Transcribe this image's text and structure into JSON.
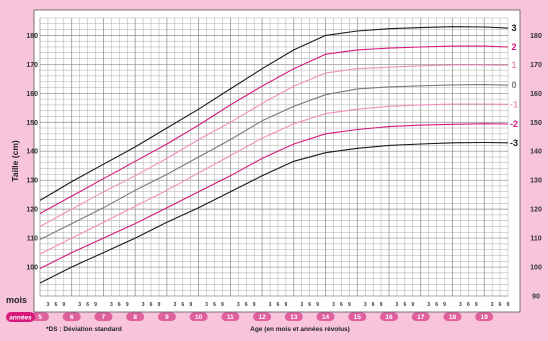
{
  "chart_data": {
    "type": "line",
    "ylabel": "Taille (cm)",
    "xlabel": "Age (en mois et années révolus)",
    "footnote": "*DS : Déviation standard",
    "months_label": "mois",
    "years_label": "années",
    "month_ticks": [
      "3",
      "6",
      "9"
    ],
    "ylim": [
      90,
      186
    ],
    "xlim": [
      5,
      19.75
    ],
    "y_ticks": [
      100,
      110,
      120,
      130,
      140,
      150,
      160,
      170,
      180
    ],
    "y_ticks_right": [
      90,
      100,
      110,
      120,
      130,
      140,
      150,
      160,
      170,
      180
    ],
    "years": [
      "5",
      "6",
      "7",
      "8",
      "9",
      "10",
      "11",
      "12",
      "13",
      "14",
      "15",
      "16",
      "17",
      "18",
      "19"
    ],
    "grid": true,
    "x": [
      5,
      6,
      7,
      8,
      9,
      10,
      11,
      12,
      13,
      14,
      15,
      16,
      17,
      18,
      19,
      19.75
    ],
    "series": [
      {
        "name": "3",
        "color": "#1a1a1a",
        "values": [
          123,
          129.5,
          135.5,
          141.5,
          148,
          154.5,
          161.5,
          168.5,
          175,
          180,
          181.5,
          182.3,
          182.7,
          183,
          182.9,
          182.5
        ]
      },
      {
        "name": "2",
        "color": "#d6197a",
        "values": [
          118.5,
          124.5,
          130.5,
          136.5,
          142.5,
          149,
          156,
          162.5,
          168.5,
          173.5,
          175,
          175.6,
          176,
          176.3,
          176.3,
          176
        ]
      },
      {
        "name": "1",
        "color": "#f08fbf",
        "values": [
          114,
          120,
          126,
          131.5,
          137.5,
          144,
          150,
          156.5,
          162.5,
          167,
          168.5,
          169,
          169.5,
          169.8,
          169.8,
          169.7
        ]
      },
      {
        "name": "0",
        "color": "#7a7a7a",
        "values": [
          109.5,
          115,
          120.5,
          126.5,
          132,
          138,
          144,
          150.5,
          155.5,
          159.5,
          161.5,
          162.2,
          162.6,
          162.9,
          163,
          162.8
        ]
      },
      {
        "name": "-1",
        "color": "#f08fbf",
        "values": [
          104.5,
          110,
          115.5,
          121,
          126.5,
          132.5,
          138.5,
          144.5,
          149.5,
          153,
          154.5,
          155.5,
          156,
          156.3,
          156.3,
          156.2
        ]
      },
      {
        "name": "-2",
        "color": "#d6197a",
        "values": [
          99.5,
          105,
          110,
          115,
          120.5,
          126,
          131.5,
          137.5,
          142.5,
          146,
          147.5,
          148.5,
          149,
          149.3,
          149.5,
          149.4
        ]
      },
      {
        "name": "-3",
        "color": "#1a1a1a",
        "values": [
          94.5,
          100,
          105,
          110,
          115.5,
          120.5,
          126,
          131.5,
          136.5,
          139.5,
          141,
          142,
          142.5,
          142.9,
          143,
          142.9
        ]
      }
    ]
  },
  "colors": {
    "background": "#f7c4dc",
    "grid_line": "#8a8a8a",
    "grid_fill": "#ffffff",
    "year_badge": "#e0609e",
    "years_badge": "#d6197a"
  }
}
